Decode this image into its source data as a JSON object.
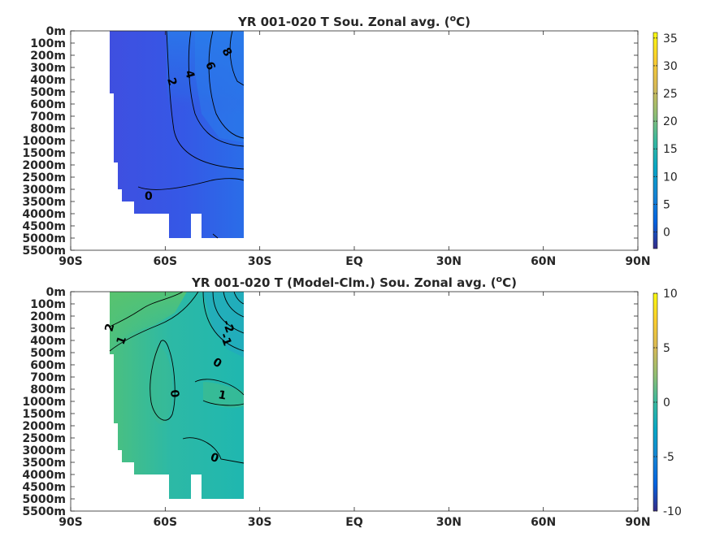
{
  "chart_data": [
    {
      "type": "heatmap",
      "title": "YR 001-020 T Sou. Zonal avg. (",
      "title_sup": "o",
      "title_end": "C)",
      "xticks": [
        "90S",
        "60S",
        "30S",
        "EQ",
        "30N",
        "60N",
        "90N"
      ],
      "yticks": [
        "0m",
        "100m",
        "200m",
        "300m",
        "400m",
        "500m",
        "600m",
        "700m",
        "800m",
        "1000m",
        "1500m",
        "2000m",
        "2500m",
        "3000m",
        "3500m",
        "4000m",
        "4500m",
        "5000m",
        "5500m"
      ],
      "colorbar": {
        "ticks": [
          "35",
          "30",
          "25",
          "20",
          "15",
          "10",
          "5",
          "0"
        ],
        "range": [
          -3,
          36
        ]
      },
      "data_lat_range": [
        "78S",
        "35S"
      ],
      "contour_labels": [
        "2",
        "4",
        "6",
        "8",
        "0"
      ],
      "colormap": "parula"
    },
    {
      "type": "heatmap",
      "title": "YR 001-020 T (Model-Clm.) Sou. Zonal avg. (",
      "title_sup": "o",
      "title_end": "C)",
      "xticks": [
        "90S",
        "60S",
        "30S",
        "EQ",
        "30N",
        "60N",
        "90N"
      ],
      "yticks": [
        "0m",
        "100m",
        "200m",
        "300m",
        "400m",
        "500m",
        "600m",
        "700m",
        "800m",
        "1000m",
        "1500m",
        "2000m",
        "2500m",
        "3000m",
        "3500m",
        "4000m",
        "4500m",
        "5000m",
        "5500m"
      ],
      "colorbar": {
        "ticks": [
          "10",
          "5",
          "0",
          "-5",
          "-10"
        ],
        "range": [
          -10,
          10
        ]
      },
      "data_lat_range": [
        "78S",
        "35S"
      ],
      "contour_labels": [
        "2",
        "1",
        "-2",
        "-1",
        "0",
        "0",
        "1",
        "0"
      ],
      "colormap": "parula"
    }
  ]
}
